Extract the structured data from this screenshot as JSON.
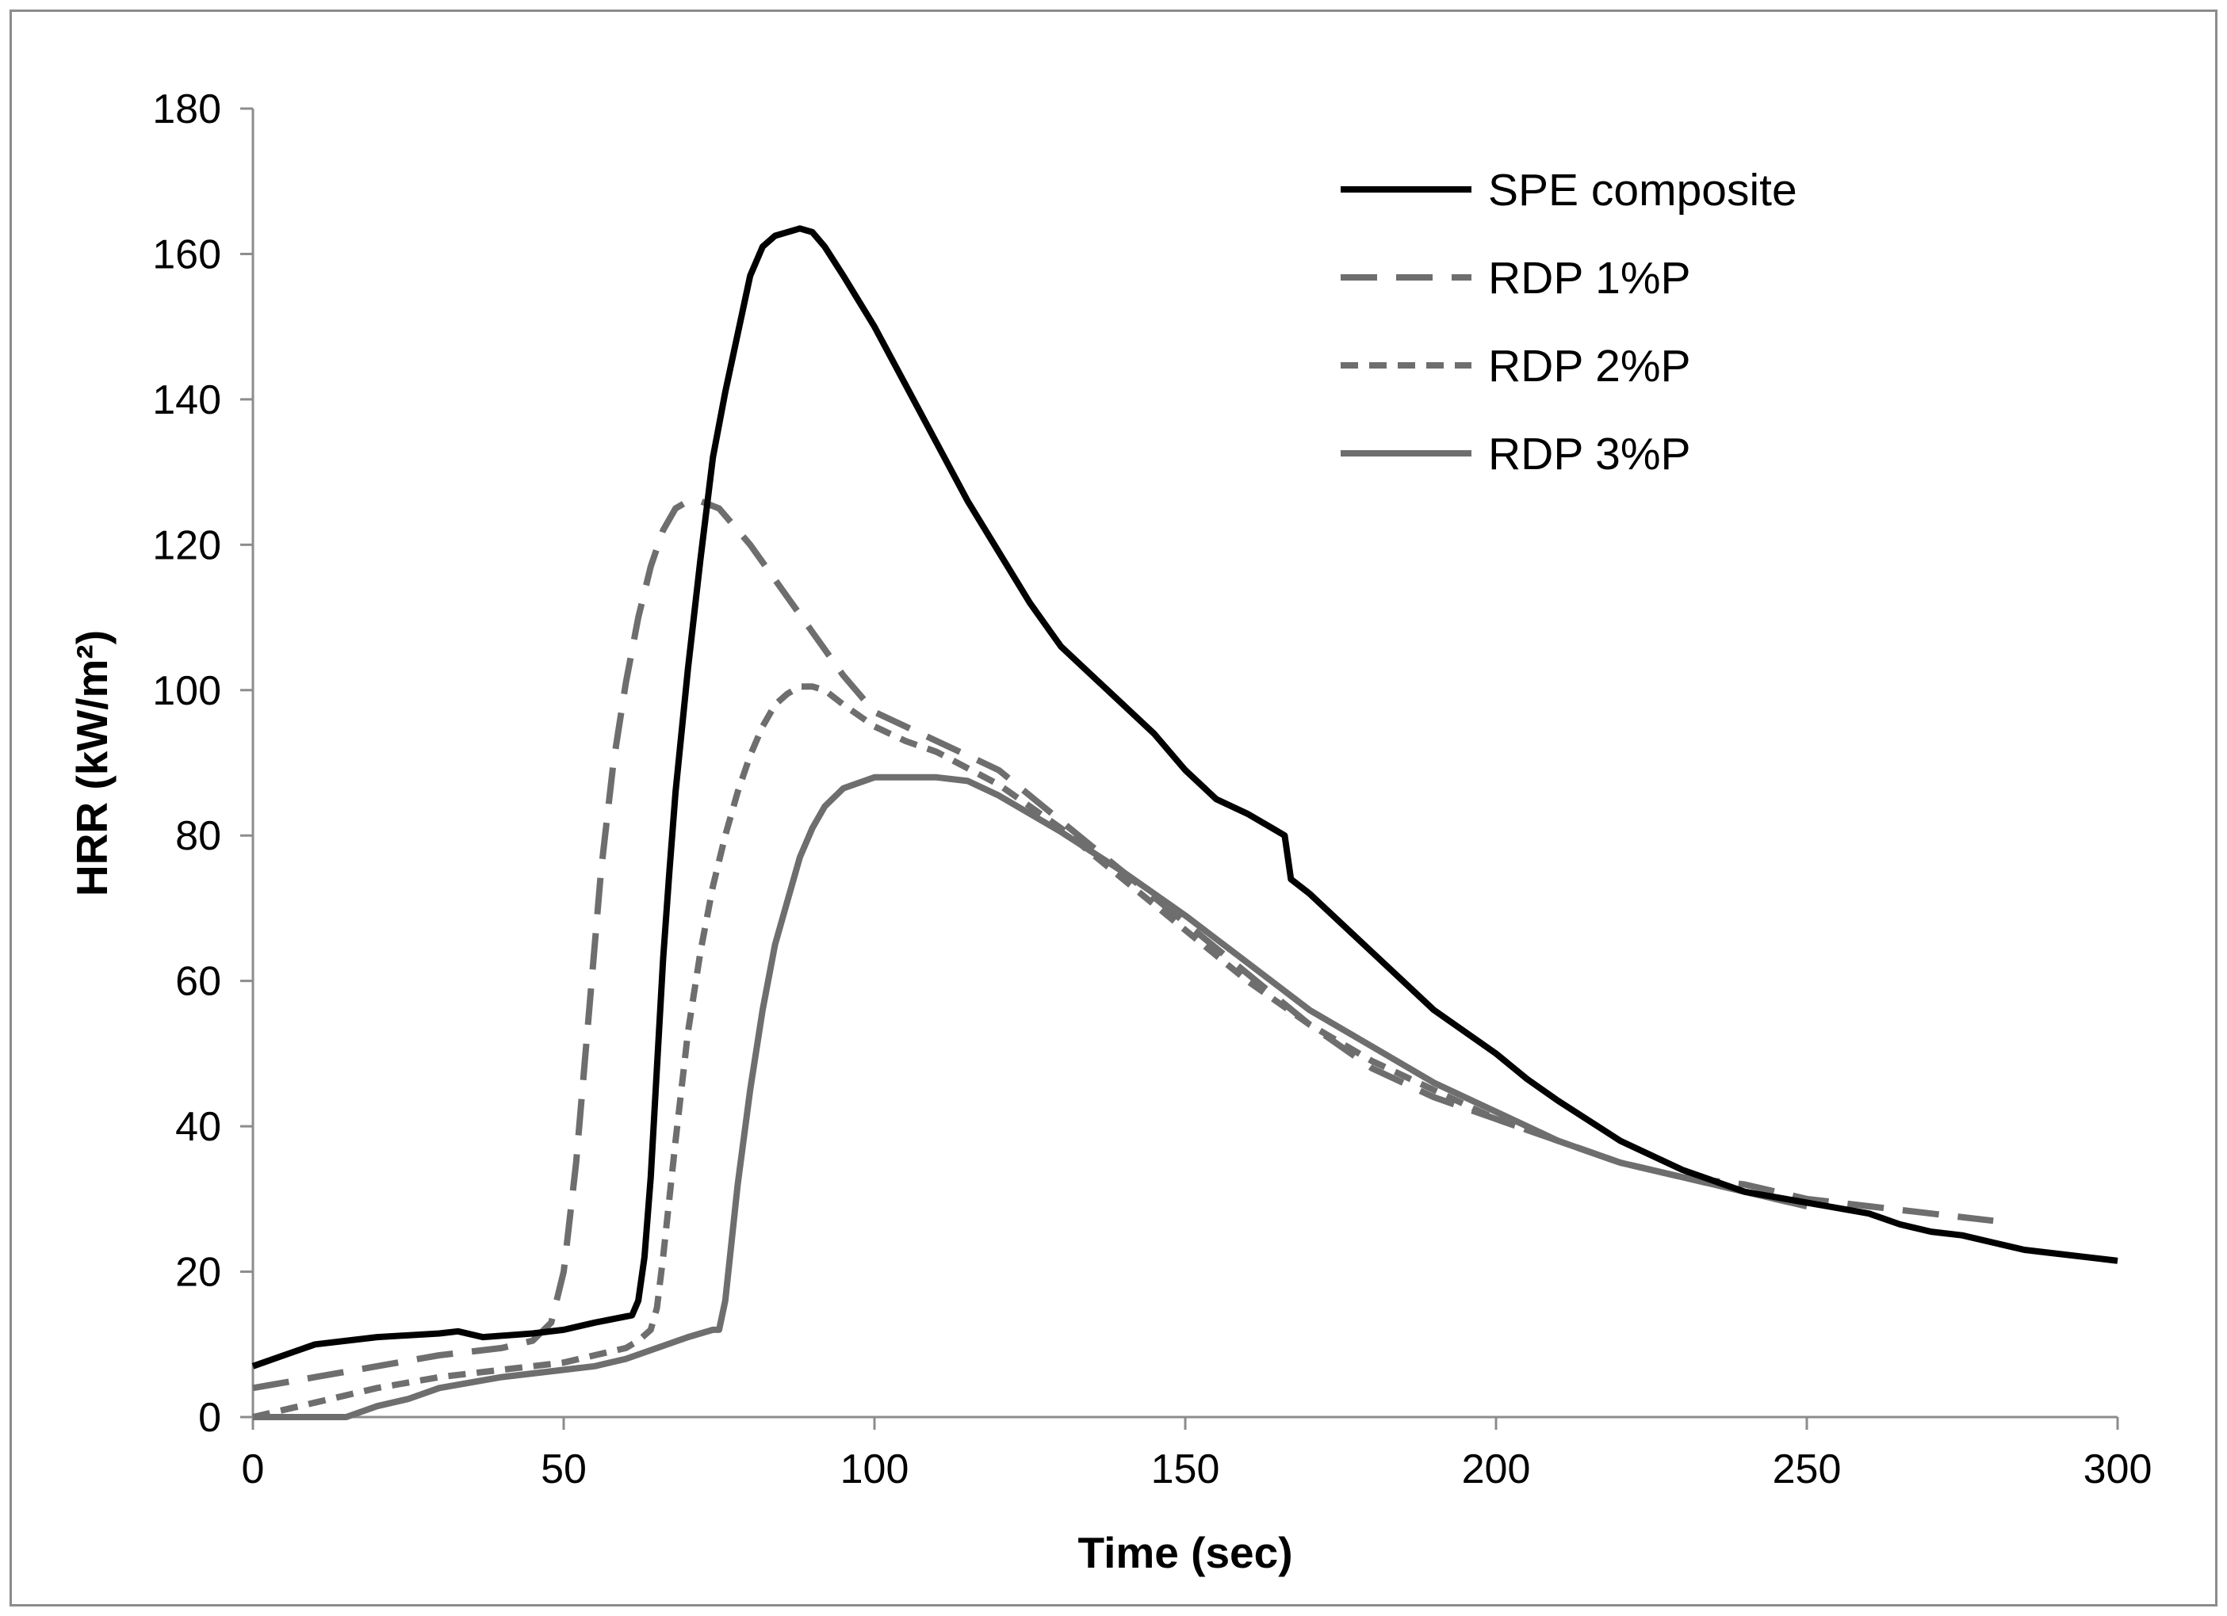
{
  "chart_data": {
    "type": "line",
    "title": "",
    "xlabel": "Time (sec)",
    "ylabel": "HRR (kW/m²)",
    "xlim": [
      0,
      300
    ],
    "ylim": [
      0,
      180
    ],
    "xticks": [
      0,
      50,
      100,
      150,
      200,
      250,
      300
    ],
    "yticks": [
      0,
      20,
      40,
      60,
      80,
      100,
      120,
      140,
      160,
      180
    ],
    "xtick_labels": [
      "0",
      "50",
      "100",
      "150",
      "200",
      "250",
      "300"
    ],
    "ytick_labels": [
      "0",
      "20",
      "40",
      "60",
      "80",
      "100",
      "120",
      "140",
      "160",
      "180"
    ],
    "grid": false,
    "legend_position": "top-right",
    "series": [
      {
        "name": "SPE composite",
        "color": "#000000",
        "dash": "solid",
        "x": [
          0,
          5,
          10,
          20,
          30,
          33,
          37,
          45,
          50,
          55,
          58,
          61,
          62,
          63,
          64,
          65,
          66,
          67,
          68,
          70,
          72,
          74,
          76,
          78,
          80,
          82,
          84,
          86,
          88,
          90,
          92,
          95,
          100,
          105,
          110,
          115,
          120,
          125,
          130,
          135,
          140,
          145,
          150,
          155,
          160,
          164,
          166,
          167,
          170,
          175,
          180,
          185,
          190,
          195,
          200,
          205,
          210,
          220,
          230,
          240,
          250,
          260,
          265,
          270,
          275,
          280,
          285,
          290,
          295,
          300
        ],
        "y": [
          7,
          8.5,
          10,
          11,
          11.5,
          11.8,
          11,
          11.5,
          12,
          13,
          13.5,
          14,
          16,
          22,
          33,
          48,
          63,
          75,
          86,
          103,
          118,
          132,
          141,
          149,
          157,
          161,
          162.5,
          163,
          163.5,
          163,
          161,
          157,
          150,
          142,
          134,
          126,
          119,
          112,
          106,
          102,
          98,
          94,
          89,
          85,
          83,
          81,
          80,
          74,
          72,
          68,
          64,
          60,
          56,
          53,
          50,
          46.5,
          43.5,
          38,
          34,
          31,
          29.5,
          28,
          26.5,
          25.5,
          25,
          24,
          23,
          22.5,
          22,
          21.5
        ]
      },
      {
        "name": "RDP 1%P",
        "color": "#6e6e6e",
        "dash": "long-dash",
        "x": [
          0,
          10,
          20,
          30,
          40,
          45,
          48,
          50,
          52,
          54,
          56,
          58,
          60,
          62,
          64,
          66,
          68,
          70,
          72,
          75,
          80,
          85,
          90,
          95,
          100,
          105,
          110,
          115,
          120,
          130,
          140,
          150,
          160,
          170,
          180,
          190,
          200,
          210,
          220,
          230,
          240,
          250,
          260,
          270,
          280
        ],
        "y": [
          4,
          5.5,
          7,
          8.5,
          9.5,
          10.5,
          13,
          20,
          35,
          55,
          75,
          90,
          101,
          110,
          117,
          122,
          125,
          126,
          126,
          125,
          120,
          114,
          108,
          102,
          97,
          95,
          93,
          91,
          89,
          82,
          75,
          68,
          61,
          54,
          48,
          44,
          41,
          38,
          35,
          33,
          32,
          30,
          29,
          28,
          27
        ]
      },
      {
        "name": "RDP 2%P",
        "color": "#6e6e6e",
        "dash": "short-dash",
        "x": [
          0,
          10,
          20,
          30,
          40,
          50,
          55,
          60,
          62,
          64,
          65,
          66,
          68,
          70,
          72,
          74,
          76,
          78,
          80,
          82,
          84,
          86,
          88,
          90,
          92,
          95,
          100,
          105,
          110,
          120,
          130,
          140,
          150,
          160,
          170,
          180,
          190,
          200,
          210,
          220,
          230,
          240,
          250
        ],
        "y": [
          0,
          2,
          4,
          5.5,
          6.5,
          7.5,
          8.5,
          9.5,
          10.5,
          12,
          15,
          22,
          38,
          53,
          64,
          73,
          80,
          86,
          91,
          95,
          98,
          99.5,
          100.5,
          100.5,
          100,
          98,
          95,
          93,
          91.5,
          87,
          81,
          74,
          67,
          60,
          54,
          49,
          45,
          41,
          38,
          35,
          33,
          31,
          29
        ]
      },
      {
        "name": "RDP 3%P",
        "color": "#6e6e6e",
        "dash": "solid",
        "x": [
          0,
          15,
          20,
          25,
          30,
          40,
          50,
          55,
          60,
          65,
          70,
          74,
          75,
          76,
          78,
          80,
          82,
          84,
          86,
          88,
          90,
          92,
          95,
          100,
          105,
          110,
          115,
          120,
          130,
          140,
          150,
          160,
          170,
          180,
          190,
          200,
          210,
          220,
          230,
          240,
          250
        ],
        "y": [
          0,
          0,
          1.5,
          2.5,
          4,
          5.5,
          6.5,
          7,
          8,
          9.5,
          11,
          12,
          12,
          16,
          32,
          45,
          56,
          65,
          71,
          77,
          81,
          84,
          86.5,
          88,
          88,
          88,
          87.5,
          85.5,
          80.5,
          75,
          69,
          62.5,
          56,
          51,
          46,
          42,
          38,
          35,
          33,
          31,
          29
        ]
      }
    ]
  }
}
